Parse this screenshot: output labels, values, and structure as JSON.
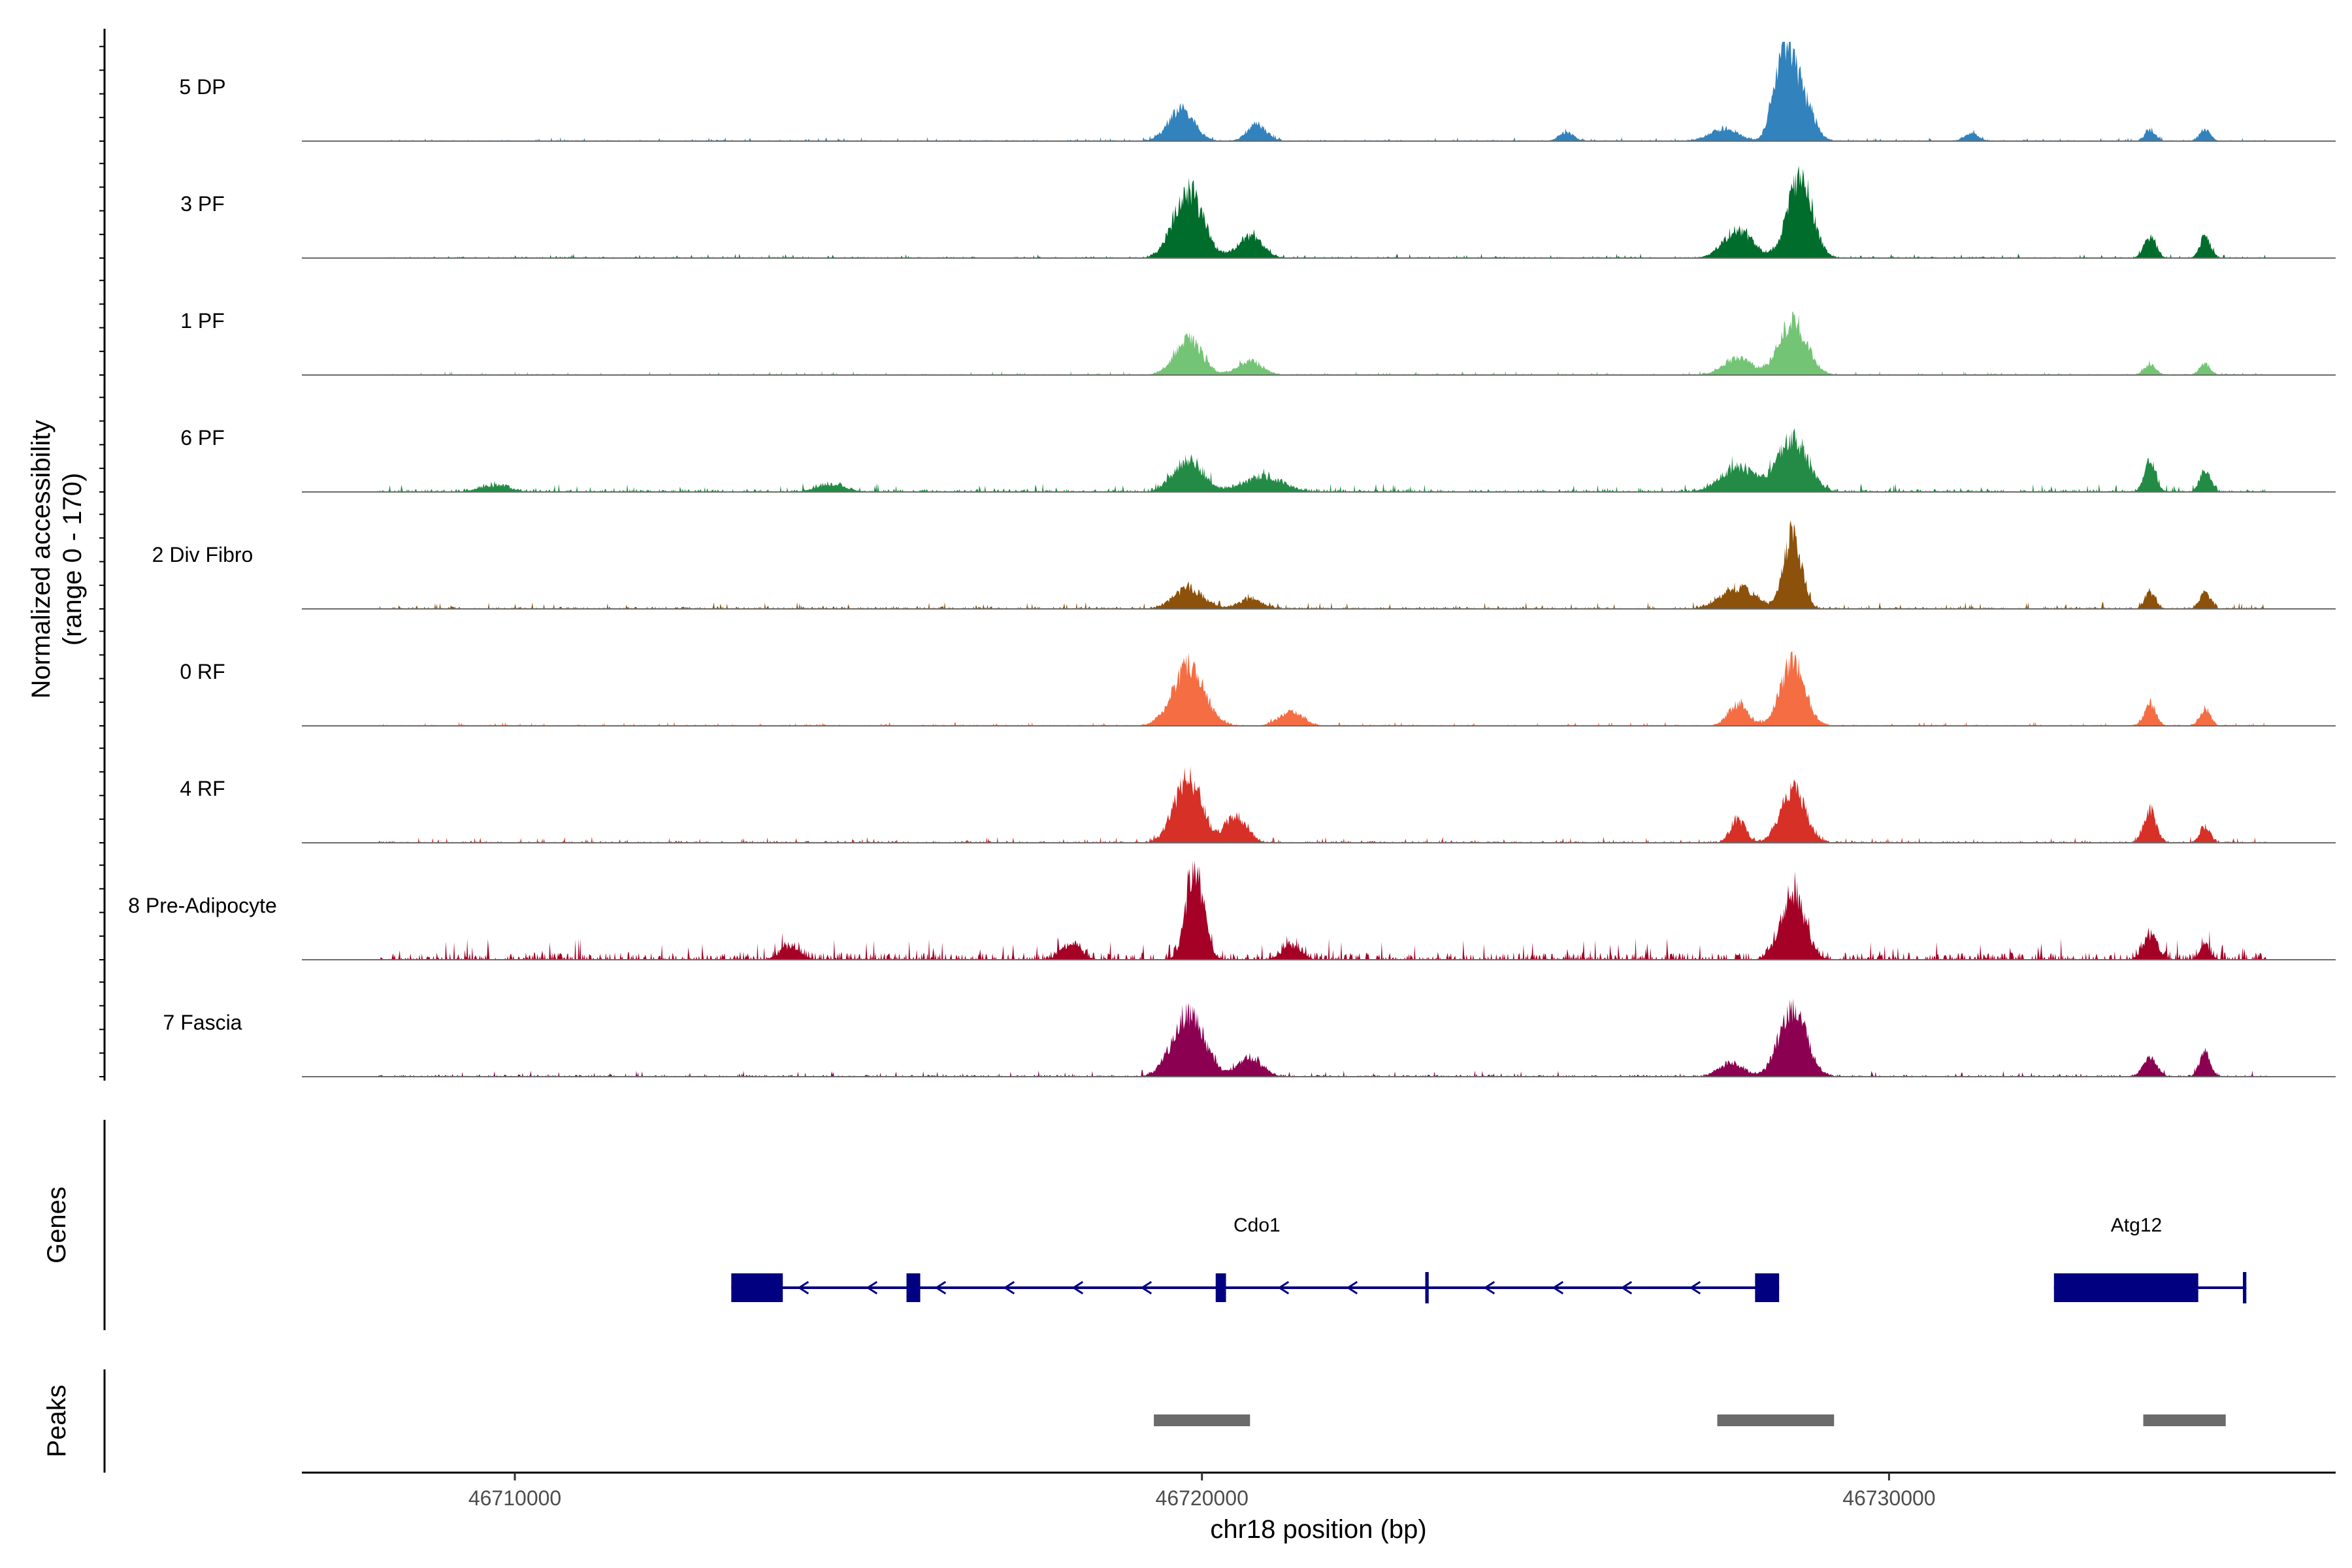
{
  "chart_data": {
    "type": "area",
    "title": "",
    "ylabel_line1": "Normalized accessibility",
    "ylabel_line2": "(range 0 - 170)",
    "ylim": [
      0,
      170
    ],
    "xlabel": "chr18 position (bp)",
    "region": [
      46706900,
      46736500
    ],
    "x_ticks": [
      {
        "value": 46710000,
        "label": "46710000"
      },
      {
        "value": 46720000,
        "label": "46720000"
      },
      {
        "value": 46730000,
        "label": "46730000"
      }
    ],
    "baseline_color": "#6b6b6b",
    "track_centers": [
      {
        "name": "5 DP",
        "color": "#3182bd",
        "base": 6,
        "noise": 3,
        "peaks": [
          [
            46719700,
            60,
            260
          ],
          [
            46720800,
            30,
            200
          ],
          [
            46725300,
            16,
            150
          ],
          [
            46727600,
            22,
            300
          ],
          [
            46728450,
            150,
            190
          ],
          [
            46728700,
            90,
            240
          ],
          [
            46731200,
            14,
            150
          ],
          [
            46733800,
            20,
            110
          ],
          [
            46734600,
            20,
            110
          ]
        ]
      },
      {
        "name": "3 PF",
        "color": "#006d2c",
        "base": 7,
        "noise": 3,
        "peaks": [
          [
            46719800,
            125,
            300
          ],
          [
            46720700,
            40,
            250
          ],
          [
            46727800,
            50,
            300
          ],
          [
            46728700,
            150,
            250
          ],
          [
            46733800,
            40,
            120
          ],
          [
            46734600,
            40,
            110
          ]
        ]
      },
      {
        "name": "1 PF",
        "color": "#74c476",
        "base": 6,
        "noise": 3,
        "peaks": [
          [
            46719800,
            65,
            280
          ],
          [
            46720700,
            25,
            250
          ],
          [
            46727800,
            30,
            300
          ],
          [
            46728600,
            100,
            280
          ],
          [
            46733800,
            20,
            120
          ],
          [
            46734600,
            20,
            110
          ]
        ]
      },
      {
        "name": "6 PF",
        "color": "#238b45",
        "base": 8,
        "noise": 5,
        "peaks": [
          [
            46709700,
            12,
            300
          ],
          [
            46714600,
            14,
            300
          ],
          [
            46719800,
            60,
            300
          ],
          [
            46720900,
            28,
            400
          ],
          [
            46727800,
            45,
            350
          ],
          [
            46728600,
            100,
            300
          ],
          [
            46733800,
            55,
            120
          ],
          [
            46734600,
            40,
            110
          ]
        ]
      },
      {
        "name": "2 Div Fibro",
        "color": "#8c510a",
        "base": 8,
        "noise": 4,
        "peaks": [
          [
            46719800,
            38,
            300
          ],
          [
            46720700,
            18,
            250
          ],
          [
            46727800,
            40,
            350
          ],
          [
            46728600,
            140,
            180
          ],
          [
            46733800,
            30,
            110
          ],
          [
            46734600,
            30,
            110
          ]
        ]
      },
      {
        "name": "0 RF",
        "color": "#f46d43",
        "base": 6,
        "noise": 3,
        "peaks": [
          [
            46719800,
            110,
            320
          ],
          [
            46721300,
            25,
            250
          ],
          [
            46727800,
            40,
            200
          ],
          [
            46728600,
            115,
            250
          ],
          [
            46733800,
            40,
            120
          ],
          [
            46734600,
            30,
            110
          ]
        ]
      },
      {
        "name": "4 RF",
        "color": "#d73027",
        "base": 7,
        "noise": 4,
        "peaks": [
          [
            46719800,
            120,
            280
          ],
          [
            46720500,
            50,
            220
          ],
          [
            46727800,
            45,
            150
          ],
          [
            46728600,
            100,
            250
          ],
          [
            46733800,
            60,
            130
          ],
          [
            46734600,
            30,
            110
          ]
        ]
      },
      {
        "name": "8 Pre-Adipocyte",
        "color": "#a50026",
        "base": 10,
        "noise": 10,
        "peaks": [
          [
            46714000,
            25,
            200
          ],
          [
            46718100,
            30,
            200
          ],
          [
            46719900,
            170,
            180
          ],
          [
            46721300,
            25,
            200
          ],
          [
            46728600,
            115,
            250
          ],
          [
            46733800,
            45,
            150
          ],
          [
            46734600,
            25,
            110
          ]
        ]
      },
      {
        "name": "7 Fascia",
        "color": "#8c0052",
        "base": 7,
        "noise": 4,
        "peaks": [
          [
            46719800,
            115,
            320
          ],
          [
            46720700,
            35,
            250
          ],
          [
            46727700,
            25,
            250
          ],
          [
            46728600,
            125,
            280
          ],
          [
            46733800,
            35,
            140
          ],
          [
            46734600,
            45,
            110
          ]
        ]
      }
    ],
    "genes_label": "Genes",
    "genes": [
      {
        "name": "Cdo1",
        "strand": "-",
        "start": 46713150,
        "end": 46728400,
        "label_pos": 46720800,
        "exons": [
          [
            46713150,
            46713900
          ],
          [
            46715700,
            46715900
          ],
          [
            46720200,
            46720350
          ],
          [
            46723250,
            46723300
          ],
          [
            46728050,
            46728400
          ]
        ]
      },
      {
        "name": "Atg12",
        "strand": "-",
        "start": 46732400,
        "end": 46735200,
        "label_pos": 46733600,
        "exons": [
          [
            46732400,
            46734500
          ],
          [
            46735150,
            46735200
          ]
        ]
      }
    ],
    "peaks_label": "Peaks",
    "peaks": [
      [
        46719300,
        46720700
      ],
      [
        46727500,
        46729200
      ],
      [
        46733700,
        46734900
      ]
    ],
    "peak_color": "#6b6b6b",
    "gene_color": "#000080"
  }
}
